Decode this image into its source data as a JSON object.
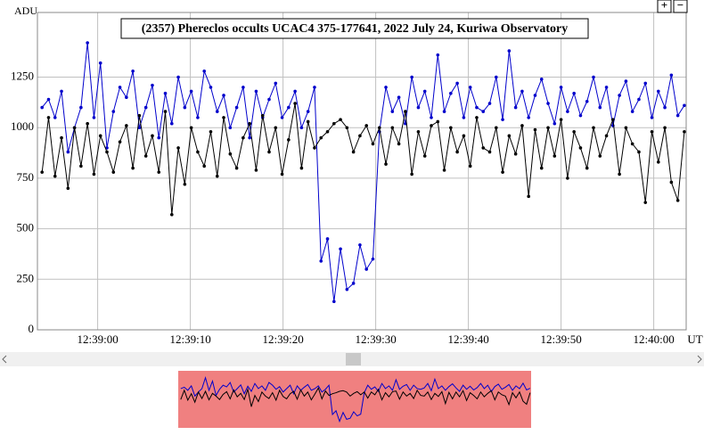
{
  "chart_data": {
    "type": "line",
    "title": "(2357) Phereclos occults UCAC4 375-177641, 2022 July 24, Kuriwa Observatory",
    "y_label": "ADU",
    "x_label": "UT",
    "xlim": [
      -6.5,
      63.5
    ],
    "ylim": [
      0,
      1570
    ],
    "xticks": [
      {
        "value": 0,
        "label": "12:39:00"
      },
      {
        "value": 10,
        "label": "12:39:10"
      },
      {
        "value": 20,
        "label": "12:39:20"
      },
      {
        "value": 30,
        "label": "12:39:30"
      },
      {
        "value": 40,
        "label": "12:39:40"
      },
      {
        "value": 50,
        "label": "12:39:50"
      },
      {
        "value": 60,
        "label": "12:40:00"
      }
    ],
    "yticks": [
      0,
      250,
      500,
      750,
      1000,
      1250
    ],
    "grid": true,
    "x": [
      -6.0,
      -5.3,
      -4.6,
      -3.9,
      -3.2,
      -2.5,
      -1.8,
      -1.1,
      -0.4,
      0.3,
      1.0,
      1.7,
      2.4,
      3.1,
      3.8,
      4.5,
      5.2,
      5.9,
      6.6,
      7.3,
      8.0,
      8.7,
      9.4,
      10.1,
      10.8,
      11.5,
      12.2,
      12.9,
      13.6,
      14.3,
      15.0,
      15.7,
      16.4,
      17.1,
      17.8,
      18.5,
      19.2,
      19.9,
      20.6,
      21.3,
      22.0,
      22.7,
      23.4,
      24.1,
      24.8,
      25.5,
      26.2,
      26.9,
      27.6,
      28.3,
      29.0,
      29.7,
      30.4,
      31.1,
      31.8,
      32.5,
      33.2,
      33.9,
      34.6,
      35.3,
      36.0,
      36.7,
      37.4,
      38.1,
      38.8,
      39.5,
      40.2,
      40.9,
      41.6,
      42.3,
      43.0,
      43.7,
      44.4,
      45.1,
      45.8,
      46.5,
      47.2,
      47.9,
      48.6,
      49.3,
      50.0,
      50.7,
      51.4,
      52.1,
      52.8,
      53.5,
      54.2,
      54.9,
      55.6,
      56.3,
      57.0,
      57.7,
      58.4,
      59.1,
      59.8,
      60.5,
      61.2,
      61.9,
      62.6,
      63.3
    ],
    "series": [
      {
        "color": "#0000cc",
        "values": [
          1100,
          1140,
          1050,
          1180,
          880,
          1000,
          1100,
          1420,
          1050,
          1320,
          900,
          1080,
          1200,
          1150,
          1280,
          1000,
          1100,
          1210,
          950,
          1170,
          1020,
          1250,
          1100,
          1180,
          1050,
          1280,
          1200,
          1080,
          1160,
          1000,
          1100,
          1200,
          950,
          1180,
          1050,
          1140,
          1220,
          1050,
          1100,
          1180,
          1000,
          1080,
          1200,
          340,
          450,
          140,
          400,
          200,
          230,
          420,
          300,
          350,
          980,
          1200,
          1080,
          1150,
          1020,
          1250,
          1100,
          1180,
          1050,
          1360,
          1080,
          1170,
          1220,
          1050,
          1200,
          1100,
          1080,
          1120,
          1250,
          1040,
          1380,
          1100,
          1180,
          1050,
          1160,
          1240,
          1120,
          1020,
          1200,
          1080,
          1170,
          1060,
          1130,
          1250,
          1100,
          1200,
          1010,
          1160,
          1230,
          1080,
          1140,
          1220,
          1050,
          1180,
          1100,
          1260,
          1060,
          1110
        ]
      },
      {
        "color": "#000000",
        "values": [
          780,
          1050,
          760,
          950,
          700,
          1000,
          810,
          1020,
          770,
          960,
          880,
          780,
          930,
          1010,
          800,
          1060,
          860,
          960,
          780,
          1080,
          570,
          900,
          720,
          1000,
          880,
          810,
          980,
          760,
          1050,
          870,
          800,
          950,
          1020,
          790,
          1060,
          880,
          1000,
          770,
          940,
          1120,
          800,
          1030,
          900,
          950,
          980,
          1020,
          1040,
          1000,
          880,
          960,
          1010,
          920,
          1000,
          820,
          1000,
          920,
          1080,
          770,
          980,
          860,
          1010,
          1030,
          790,
          1000,
          880,
          960,
          810,
          1050,
          900,
          880,
          1000,
          780,
          960,
          870,
          1010,
          660,
          990,
          800,
          1000,
          860,
          1040,
          750,
          980,
          900,
          800,
          1000,
          860,
          960,
          1040,
          770,
          1000,
          920,
          880,
          630,
          980,
          830,
          1000,
          730,
          640,
          980
        ]
      }
    ]
  },
  "controls": {
    "zoom_in": "+",
    "zoom_out": "−"
  }
}
